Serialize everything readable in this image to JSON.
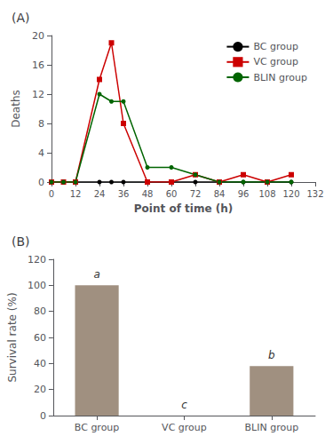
{
  "chart_data": [
    {
      "type": "line",
      "title": "(A)",
      "x": [
        0,
        6,
        12,
        24,
        30,
        36,
        48,
        60,
        72,
        84,
        96,
        108,
        120
      ],
      "series": [
        {
          "name": "BC group",
          "color": "#000000",
          "marker": "circle",
          "values": [
            0,
            0,
            0,
            0,
            0,
            0,
            0,
            0,
            0,
            0,
            0,
            0,
            0
          ]
        },
        {
          "name": "VC group",
          "color": "#cc0000",
          "marker": "square",
          "values": [
            0,
            0,
            0,
            14,
            19,
            8,
            0,
            0,
            1,
            0,
            1,
            0,
            1
          ]
        },
        {
          "name": "BLIN group",
          "color": "#006400",
          "marker": "circle",
          "values": [
            0,
            0,
            0,
            12,
            11,
            11,
            2,
            2,
            1,
            0,
            0,
            0,
            0
          ]
        }
      ],
      "xlabel": "Point of time (h)",
      "ylabel": "Deaths",
      "xlim": [
        0,
        132
      ],
      "xticks": [
        0,
        12,
        24,
        36,
        48,
        60,
        72,
        84,
        96,
        108,
        120,
        132
      ],
      "ylim": [
        0,
        20
      ],
      "yticks": [
        0,
        4,
        8,
        12,
        16,
        20
      ],
      "legend": "upper right",
      "grid": false
    },
    {
      "type": "bar",
      "title": "(B)",
      "categories": [
        "BC group",
        "VC group",
        "BLIN group"
      ],
      "values": [
        100,
        0,
        38
      ],
      "color": "#a09080",
      "annotations": [
        "a",
        "c",
        "b"
      ],
      "ylabel": "Survival rate (%)",
      "ylim": [
        0,
        120
      ],
      "yticks": [
        0,
        20,
        40,
        60,
        80,
        100,
        120
      ],
      "grid": false
    }
  ]
}
